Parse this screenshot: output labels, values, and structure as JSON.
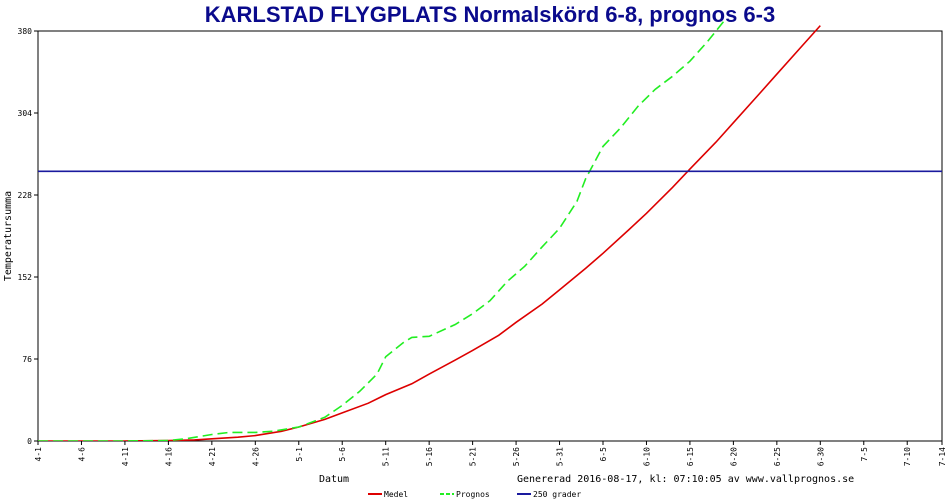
{
  "chart_data": {
    "type": "line",
    "title": "KARLSTAD FLYGPLATS Normalskörd 6-8, prognos 6-3",
    "xlabel": "Datum",
    "ylabel": "Temperatursumma",
    "generated_note": "Genererad 2016-08-17, kl: 07:10:05 av www.vallprognos.se",
    "ylim": [
      0,
      380
    ],
    "yticks": [
      0,
      76,
      152,
      228,
      304,
      380
    ],
    "xlim": [
      0,
      104
    ],
    "xticks": [
      {
        "label": "4-1",
        "x": 0
      },
      {
        "label": "4-6",
        "x": 5
      },
      {
        "label": "4-11",
        "x": 10
      },
      {
        "label": "4-16",
        "x": 15
      },
      {
        "label": "4-21",
        "x": 20
      },
      {
        "label": "4-26",
        "x": 25
      },
      {
        "label": "5-1",
        "x": 30
      },
      {
        "label": "5-6",
        "x": 35
      },
      {
        "label": "5-11",
        "x": 40
      },
      {
        "label": "5-16",
        "x": 45
      },
      {
        "label": "5-21",
        "x": 50
      },
      {
        "label": "5-26",
        "x": 55
      },
      {
        "label": "5-31",
        "x": 60
      },
      {
        "label": "6-5",
        "x": 65
      },
      {
        "label": "6-10",
        "x": 70
      },
      {
        "label": "6-15",
        "x": 75
      },
      {
        "label": "6-20",
        "x": 80
      },
      {
        "label": "6-25",
        "x": 85
      },
      {
        "label": "6-30",
        "x": 90
      },
      {
        "label": "7-5",
        "x": 95
      },
      {
        "label": "7-10",
        "x": 100
      },
      {
        "label": "7-14",
        "x": 104
      }
    ],
    "grid": false,
    "legend": "bottom",
    "series": [
      {
        "name": "Medel",
        "color": "#dd0000",
        "style": "solid",
        "points": [
          [
            0,
            0
          ],
          [
            10,
            0
          ],
          [
            15,
            0.5
          ],
          [
            18,
            1
          ],
          [
            20,
            2
          ],
          [
            23,
            3.5
          ],
          [
            25,
            5
          ],
          [
            28,
            9
          ],
          [
            30,
            13
          ],
          [
            33,
            20
          ],
          [
            35,
            26
          ],
          [
            38,
            35
          ],
          [
            40,
            43
          ],
          [
            43,
            53
          ],
          [
            45,
            62
          ],
          [
            48,
            75
          ],
          [
            50,
            84
          ],
          [
            53,
            98
          ],
          [
            55,
            110
          ],
          [
            58,
            127
          ],
          [
            60,
            140
          ],
          [
            63,
            160
          ],
          [
            65,
            174
          ],
          [
            68,
            196
          ],
          [
            70,
            211
          ],
          [
            73,
            235
          ],
          [
            75,
            252
          ],
          [
            78,
            277
          ],
          [
            80,
            295
          ],
          [
            83,
            322
          ],
          [
            85,
            340
          ],
          [
            88,
            367
          ],
          [
            90,
            385
          ]
        ]
      },
      {
        "name": "Prognos",
        "color": "#22ee22",
        "style": "dashed",
        "points": [
          [
            0,
            0
          ],
          [
            10,
            0
          ],
          [
            15,
            0.5
          ],
          [
            17,
            2
          ],
          [
            20,
            6
          ],
          [
            22,
            8
          ],
          [
            25,
            8
          ],
          [
            27,
            9
          ],
          [
            30,
            13
          ],
          [
            33,
            22
          ],
          [
            35,
            33
          ],
          [
            37,
            46
          ],
          [
            39,
            62
          ],
          [
            40,
            78
          ],
          [
            42,
            91
          ],
          [
            43,
            96
          ],
          [
            45,
            97
          ],
          [
            48,
            108
          ],
          [
            50,
            118
          ],
          [
            52,
            130
          ],
          [
            54,
            148
          ],
          [
            56,
            162
          ],
          [
            58,
            180
          ],
          [
            60,
            197
          ],
          [
            62,
            222
          ],
          [
            63,
            243
          ],
          [
            65,
            273
          ],
          [
            67,
            290
          ],
          [
            69,
            310
          ],
          [
            71,
            326
          ],
          [
            73,
            338
          ],
          [
            75,
            352
          ],
          [
            77,
            370
          ],
          [
            78,
            380
          ],
          [
            79,
            390
          ]
        ]
      },
      {
        "name": "250 grader",
        "color": "#1a1a9e",
        "style": "solid",
        "points": [
          [
            0,
            250
          ],
          [
            104,
            250
          ]
        ]
      }
    ]
  }
}
